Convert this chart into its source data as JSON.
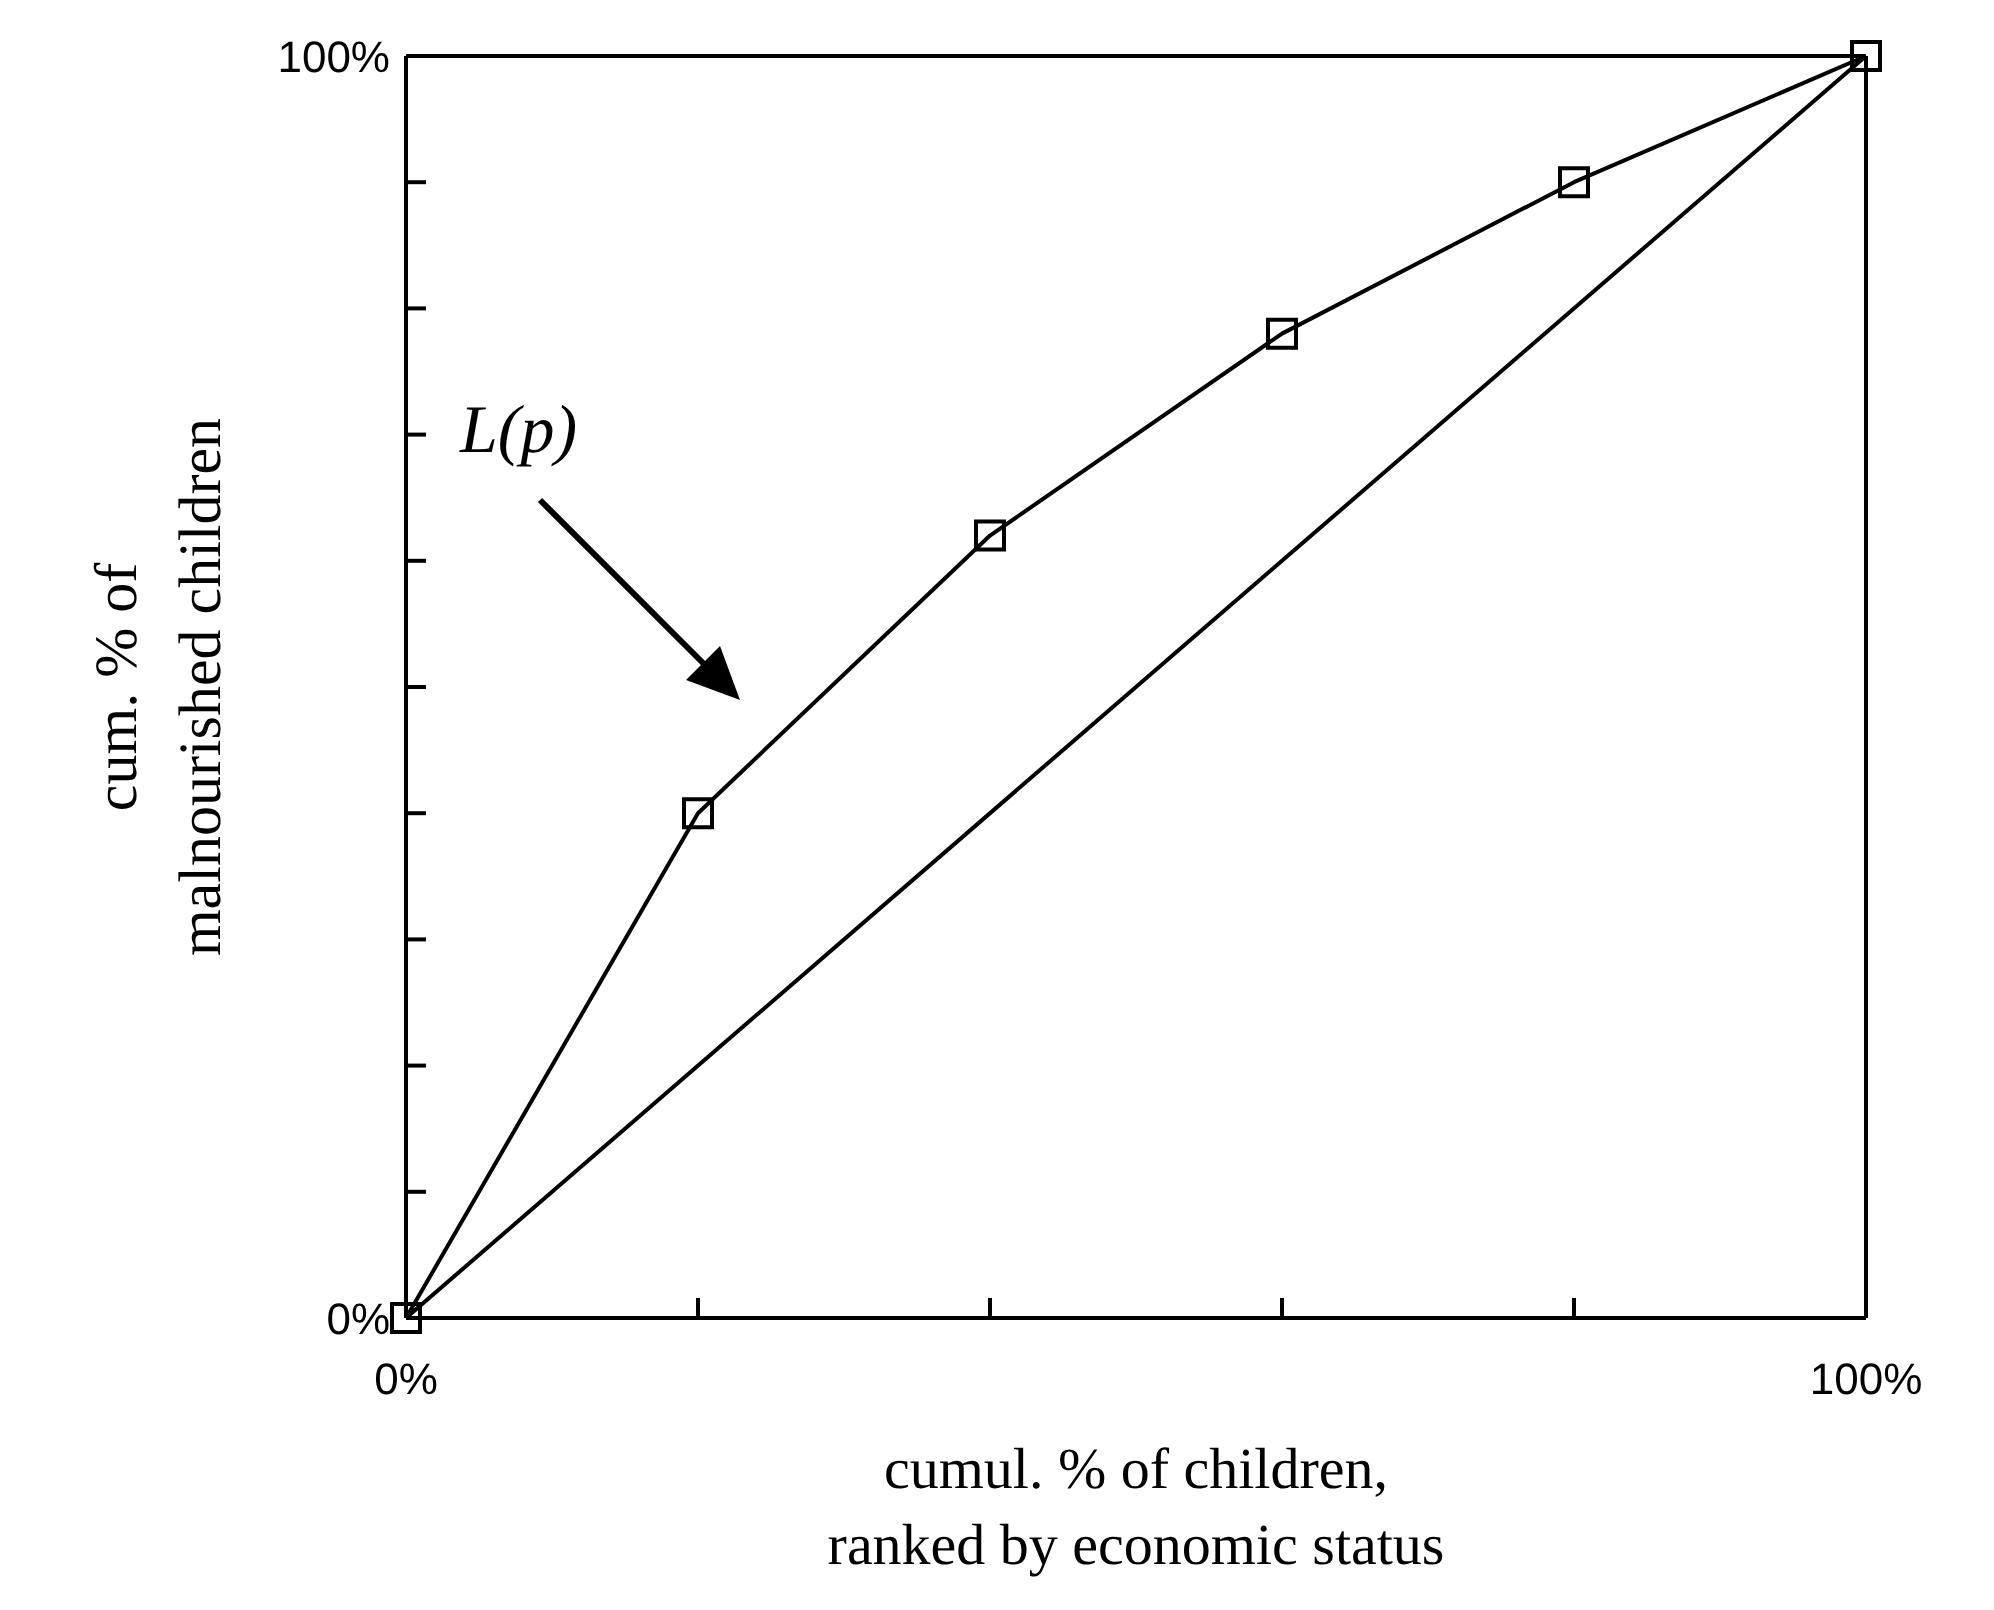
{
  "chart_data": {
    "type": "line",
    "xlabel": "cumul. % of children,\nranked by economic status",
    "ylabel": "cum. % of\nmalnourished children",
    "annotations": [
      "L(p)"
    ],
    "xlim": [
      0,
      100
    ],
    "ylim": [
      0,
      100
    ],
    "xticks": [
      {
        "value": 0,
        "label": "0%"
      },
      {
        "value": 20,
        "label": null
      },
      {
        "value": 40,
        "label": null
      },
      {
        "value": 60,
        "label": null
      },
      {
        "value": 80,
        "label": null
      },
      {
        "value": 100,
        "label": "100%"
      }
    ],
    "yticks": [
      {
        "value": 0,
        "label": "0%"
      },
      {
        "value": 10,
        "label": null
      },
      {
        "value": 20,
        "label": null
      },
      {
        "value": 30,
        "label": null
      },
      {
        "value": 40,
        "label": null
      },
      {
        "value": 50,
        "label": null
      },
      {
        "value": 60,
        "label": null
      },
      {
        "value": 70,
        "label": null
      },
      {
        "value": 80,
        "label": null
      },
      {
        "value": 90,
        "label": null
      },
      {
        "value": 100,
        "label": "100%"
      }
    ],
    "grid": false,
    "line_style": "solid",
    "series": [
      {
        "color": "#000000",
        "marker": "square",
        "x": [
          0,
          20,
          40,
          60,
          80,
          100
        ],
        "values": [
          0,
          40,
          62,
          78,
          90,
          100
        ]
      },
      {
        "color": "#000000",
        "marker": "none",
        "x": [
          0,
          100
        ],
        "values": [
          0,
          100
        ]
      }
    ]
  }
}
